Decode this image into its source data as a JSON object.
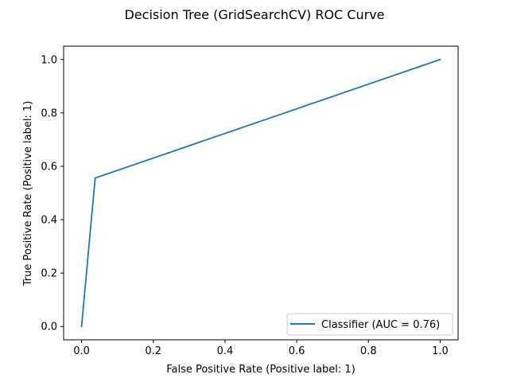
{
  "chart_data": {
    "type": "line",
    "title": "Decision Tree (GridSearchCV) ROC Curve",
    "xlabel": "False Positive Rate (Positive label: 1)",
    "ylabel": "True Positive Rate (Positive label: 1)",
    "xlim": [
      -0.05,
      1.05
    ],
    "ylim": [
      -0.05,
      1.05
    ],
    "xticks": [
      "0.0",
      "0.2",
      "0.4",
      "0.6",
      "0.8",
      "1.0"
    ],
    "yticks": [
      "0.0",
      "0.2",
      "0.4",
      "0.6",
      "0.8",
      "1.0"
    ],
    "grid": false,
    "legend_position": "lower-right",
    "series": [
      {
        "name": "Classifier (AUC = 0.76)",
        "color": "#1f77b4",
        "x": [
          0.0,
          0.038,
          1.0
        ],
        "y": [
          0.0,
          0.556,
          1.0
        ]
      }
    ]
  }
}
